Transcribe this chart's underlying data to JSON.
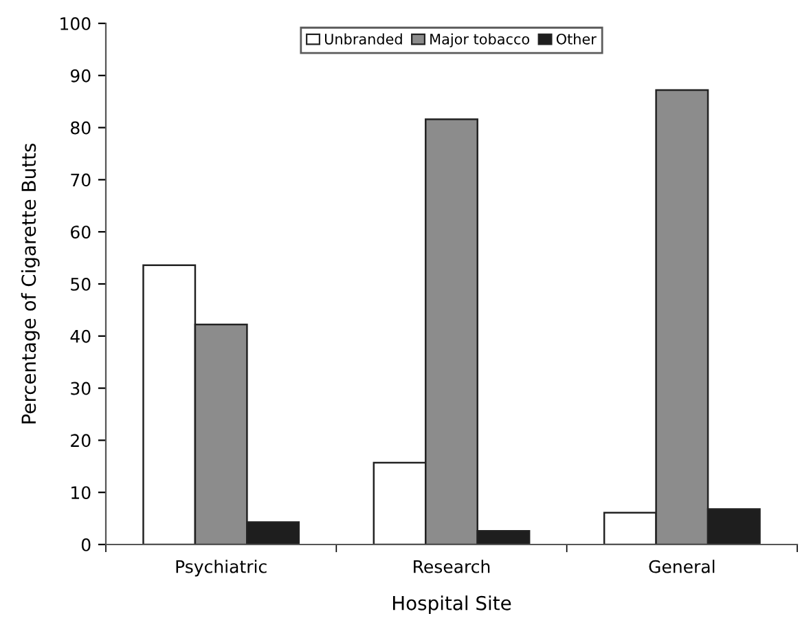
{
  "chart_data": {
    "type": "bar",
    "xlabel": "Hospital Site",
    "ylabel": "Percentage of Cigarette Butts",
    "categories": [
      "Psychiatric",
      "Research",
      "General"
    ],
    "series": [
      {
        "name": "Unbranded",
        "color": "#ffffff",
        "values": [
          53.6,
          15.7,
          6.1
        ]
      },
      {
        "name": "Major tobacco",
        "color": "#8c8c8c",
        "values": [
          42.2,
          81.6,
          87.2
        ]
      },
      {
        "name": "Other",
        "color": "#1e1e1e",
        "values": [
          4.3,
          2.6,
          6.8
        ]
      }
    ],
    "ylim": [
      0,
      100
    ],
    "yticks": [
      0,
      10,
      20,
      30,
      40,
      50,
      60,
      70,
      80,
      90,
      100
    ],
    "grid": false,
    "legend": "top"
  }
}
